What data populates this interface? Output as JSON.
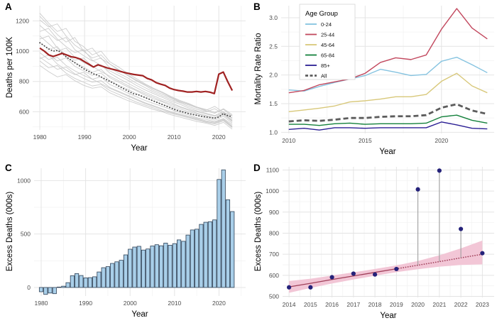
{
  "figure": {
    "background": "#ffffff",
    "grid_major_color": "#e4e4e4",
    "grid_minor_color": "#f3f3f3",
    "tick_label_color": "#4d4d4d"
  },
  "chart_data": [
    {
      "id": "A",
      "panel_label": "A",
      "type": "line",
      "axes": {
        "x": {
          "label": "Year",
          "lim": [
            1978.4,
            2026.0
          ],
          "ticks": [
            1980,
            1990,
            2000,
            2010,
            2020
          ],
          "tick_labels": [
            "1980",
            "1990",
            "2000",
            "2010",
            "2020"
          ],
          "minor": [
            1985,
            1995,
            2005,
            2015,
            2025
          ]
        },
        "y": {
          "label": "Deaths per 100K",
          "lim": [
            480,
            1300
          ],
          "ticks": [
            600,
            800,
            1000,
            1200
          ],
          "tick_labels": [
            "600",
            "800",
            "1000",
            "1200"
          ],
          "minor": [
            500,
            700,
            900,
            1100
          ]
        }
      },
      "x_start": 1980,
      "x_end": 2023,
      "background_color": "#c7c7c7",
      "background_series": [
        [
          1250,
          1185,
          1130,
          1150,
          1065,
          1030,
          975,
          1000,
          930,
          895,
          855,
          820,
          785,
          755,
          730,
          700,
          675,
          655,
          630,
          610,
          635,
          595,
          575
        ],
        [
          1205,
          1160,
          1180,
          1100,
          1040,
          1000,
          1020,
          950,
          915,
          880,
          840,
          805,
          775,
          740,
          715,
          690,
          665,
          645,
          625,
          605,
          590,
          620,
          580
        ],
        [
          1170,
          1120,
          1070,
          1090,
          1010,
          970,
          935,
          955,
          890,
          855,
          825,
          790,
          760,
          730,
          705,
          680,
          660,
          635,
          615,
          600,
          620,
          585,
          560
        ],
        [
          1130,
          1150,
          1080,
          1030,
          990,
          1010,
          940,
          905,
          870,
          840,
          810,
          775,
          745,
          720,
          695,
          670,
          650,
          625,
          605,
          590,
          575,
          600,
          555
        ],
        [
          1100,
          1050,
          1000,
          1020,
          960,
          925,
          895,
          910,
          855,
          820,
          790,
          760,
          730,
          705,
          680,
          660,
          635,
          615,
          600,
          585,
          570,
          590,
          545
        ],
        [
          1060,
          1010,
          1030,
          960,
          925,
          895,
          860,
          880,
          825,
          795,
          765,
          740,
          710,
          685,
          665,
          640,
          620,
          600,
          585,
          570,
          555,
          580,
          535
        ],
        [
          1020,
          980,
          935,
          955,
          900,
          870,
          840,
          855,
          805,
          775,
          750,
          720,
          695,
          670,
          650,
          630,
          610,
          590,
          575,
          560,
          545,
          570,
          525
        ],
        [
          990,
          945,
          960,
          905,
          870,
          840,
          815,
          830,
          780,
          755,
          725,
          700,
          675,
          655,
          635,
          615,
          595,
          580,
          560,
          550,
          535,
          555,
          515
        ],
        [
          960,
          920,
          880,
          895,
          850,
          820,
          795,
          805,
          760,
          735,
          710,
          685,
          660,
          640,
          620,
          600,
          585,
          570,
          555,
          540,
          530,
          550,
          505
        ],
        [
          935,
          890,
          905,
          855,
          820,
          795,
          770,
          780,
          740,
          715,
          690,
          665,
          645,
          625,
          605,
          590,
          575,
          560,
          545,
          530,
          520,
          540,
          495
        ],
        [
          905,
          865,
          830,
          845,
          805,
          775,
          755,
          765,
          725,
          700,
          675,
          655,
          635,
          615,
          600,
          580,
          565,
          550,
          535,
          525,
          510,
          530,
          485
        ],
        [
          1230,
          1170,
          1110,
          1060,
          1090,
          1000,
          955,
          975,
          915,
          875,
          845,
          810,
          780,
          750,
          725,
          695,
          670,
          650,
          630,
          615,
          595,
          615,
          570
        ],
        [
          1080,
          1100,
          1020,
          975,
          940,
          955,
          900,
          865,
          835,
          805,
          775,
          745,
          720,
          695,
          670,
          650,
          630,
          610,
          590,
          575,
          560,
          585,
          540
        ],
        [
          950,
          975,
          915,
          875,
          845,
          860,
          815,
          785,
          755,
          730,
          705,
          680,
          655,
          635,
          615,
          595,
          580,
          565,
          550,
          535,
          525,
          545,
          500
        ]
      ],
      "series": [
        {
          "name": "average-dotted",
          "color": "#3d3d3d",
          "width": 1.8,
          "dotted": true,
          "values": [
            1055,
            1035,
            1015,
            1000,
            1005,
            985,
            960,
            940,
            920,
            900,
            880,
            865,
            850,
            840,
            825,
            810,
            795,
            780,
            762,
            748,
            732,
            718,
            712,
            700,
            688,
            676,
            664,
            652,
            640,
            628,
            616,
            606,
            598,
            590,
            583,
            577,
            570,
            566,
            562,
            557,
            565,
            588,
            574,
            568
          ]
        },
        {
          "name": "highlighted-red",
          "color": "#a02222",
          "width": 2.2,
          "values": [
            1020,
            1000,
            975,
            965,
            975,
            985,
            975,
            963,
            958,
            948,
            930,
            913,
            895,
            910,
            900,
            890,
            882,
            875,
            866,
            858,
            852,
            846,
            842,
            838,
            820,
            810,
            792,
            782,
            774,
            756,
            746,
            740,
            736,
            730,
            730,
            734,
            730,
            734,
            729,
            720,
            848,
            862,
            798,
            740
          ]
        }
      ]
    },
    {
      "id": "B",
      "panel_label": "B",
      "type": "line",
      "axes": {
        "x": {
          "label": "Year",
          "lim": [
            2009.5,
            2023.45
          ],
          "ticks": [
            2010,
            2015,
            2020
          ],
          "tick_labels": [
            "2010",
            "2015",
            "2020"
          ],
          "minor": [
            2012.5,
            2017.5,
            2022.5
          ]
        },
        "y": {
          "label": "Mortality Rate Ratio",
          "lim": [
            0.98,
            3.21
          ],
          "ticks": [
            1.0,
            1.5,
            2.0,
            2.5,
            3.0
          ],
          "tick_labels": [
            "1.0",
            "1.5",
            "2.0",
            "2.5",
            "3.0"
          ],
          "minor": [
            1.25,
            1.75,
            2.25,
            2.75
          ]
        }
      },
      "x_start": 2010,
      "x_end": 2023,
      "legend": {
        "title": "Age Group",
        "entries": [
          {
            "label": "0-24",
            "color": "#85c3e0",
            "dash": false
          },
          {
            "label": "25-44",
            "color": "#c2485e",
            "dash": false
          },
          {
            "label": "45-64",
            "color": "#d8c87a",
            "dash": false
          },
          {
            "label": "65-84",
            "color": "#14813c",
            "dash": false
          },
          {
            "label": "85+",
            "color": "#2b1f94",
            "dash": false
          },
          {
            "label": "All",
            "color": "#5c5c5c",
            "dash": true
          }
        ]
      },
      "series": [
        {
          "name": "0-24",
          "color": "#85c3e0",
          "width": 1.4,
          "values": [
            1.74,
            1.72,
            1.8,
            1.87,
            1.93,
            1.99,
            2.1,
            2.05,
            1.99,
            2.01,
            2.24,
            2.31,
            2.18,
            2.04
          ]
        },
        {
          "name": "25-44",
          "color": "#c2485e",
          "width": 1.4,
          "values": [
            1.69,
            1.73,
            1.83,
            1.88,
            1.93,
            2.03,
            2.22,
            2.3,
            2.27,
            2.35,
            2.8,
            3.16,
            2.82,
            2.63
          ]
        },
        {
          "name": "45-64",
          "color": "#d8c87a",
          "width": 1.4,
          "values": [
            1.36,
            1.39,
            1.42,
            1.46,
            1.53,
            1.55,
            1.58,
            1.62,
            1.62,
            1.66,
            1.89,
            2.03,
            1.81,
            1.69
          ]
        },
        {
          "name": "65-84",
          "color": "#14813c",
          "width": 1.4,
          "values": [
            1.14,
            1.14,
            1.12,
            1.15,
            1.16,
            1.14,
            1.15,
            1.15,
            1.15,
            1.16,
            1.27,
            1.3,
            1.21,
            1.16
          ]
        },
        {
          "name": "85+",
          "color": "#2b1f94",
          "width": 1.4,
          "values": [
            1.05,
            1.07,
            1.04,
            1.08,
            1.08,
            1.07,
            1.08,
            1.08,
            1.08,
            1.08,
            1.18,
            1.13,
            1.07,
            1.06
          ]
        },
        {
          "name": "All",
          "color": "#5c5c5c",
          "width": 2.8,
          "dash": "7 4",
          "values": [
            1.19,
            1.21,
            1.2,
            1.22,
            1.25,
            1.25,
            1.27,
            1.28,
            1.28,
            1.3,
            1.43,
            1.49,
            1.38,
            1.32
          ]
        }
      ]
    },
    {
      "id": "C",
      "panel_label": "C",
      "type": "bar",
      "axes": {
        "x": {
          "label": "Year",
          "lim": [
            1978.4,
            2026.0
          ],
          "ticks": [
            1980,
            1990,
            2000,
            2010,
            2020
          ],
          "tick_labels": [
            "1980",
            "1990",
            "2000",
            "2010",
            "2020"
          ],
          "minor": [
            1985,
            1995,
            2005,
            2015,
            2025
          ]
        },
        "y": {
          "label": "Excess Deaths (000s)",
          "lim": [
            -80,
            1115
          ],
          "ticks": [
            0,
            500,
            1000
          ],
          "tick_labels": [
            "0",
            "500",
            "1000"
          ],
          "minor": [
            250,
            750
          ]
        }
      },
      "x_start": 1980,
      "bar_fill": "#a9cfe9",
      "bar_stroke": "#2e4156",
      "values": [
        -40,
        -65,
        -52,
        -58,
        4,
        12,
        45,
        110,
        130,
        112,
        90,
        92,
        100,
        145,
        185,
        195,
        225,
        240,
        255,
        305,
        358,
        378,
        385,
        350,
        360,
        388,
        400,
        390,
        415,
        395,
        410,
        445,
        432,
        490,
        538,
        545,
        590,
        610,
        615,
        632,
        1010,
        1100,
        820,
        710
      ]
    },
    {
      "id": "D",
      "panel_label": "D",
      "type": "scatter",
      "axes": {
        "x": {
          "label": "Year",
          "lim": [
            2013.7,
            2023.55
          ],
          "ticks": [
            2014,
            2015,
            2016,
            2017,
            2018,
            2019,
            2020,
            2021,
            2022,
            2023
          ],
          "tick_labels": [
            "2014",
            "2015",
            "2016",
            "2017",
            "2018",
            "2019",
            "2020",
            "2021",
            "2022",
            "2023"
          ],
          "minor": [
            2014.5,
            2015.5,
            2016.5,
            2017.5,
            2018.5,
            2019.5,
            2020.5,
            2021.5,
            2022.5
          ]
        },
        "y": {
          "label": "Excess Deaths (000s)",
          "lim": [
            495,
            1115
          ],
          "ticks": [
            500,
            600,
            700,
            800,
            900,
            1000,
            1100
          ],
          "tick_labels": [
            "500",
            "600",
            "700",
            "800",
            "900",
            "1000",
            "1100"
          ],
          "minor": [
            550,
            650,
            750,
            850,
            950,
            1050
          ]
        }
      },
      "x": [
        2014,
        2015,
        2016,
        2017,
        2018,
        2019,
        2020,
        2021,
        2022,
        2023
      ],
      "points": [
        543,
        543,
        591,
        608,
        604,
        630,
        1008,
        1097,
        820,
        705
      ],
      "trend": [
        545,
        562,
        580,
        597,
        614,
        631,
        648,
        665,
        683,
        700
      ],
      "ribbon_lower": [
        517,
        540,
        561,
        580,
        598,
        615,
        629,
        641,
        649,
        652
      ],
      "ribbon_upper": [
        573,
        584,
        599,
        614,
        630,
        647,
        668,
        695,
        728,
        765
      ],
      "trend_solid_until": 2019,
      "stems": [
        2020,
        2021,
        2022
      ],
      "point_color": "#25227a",
      "ribbon_color": "#f2c6d6",
      "trend_color": "#a0405a",
      "stem_color": "#9a9a9a"
    }
  ]
}
